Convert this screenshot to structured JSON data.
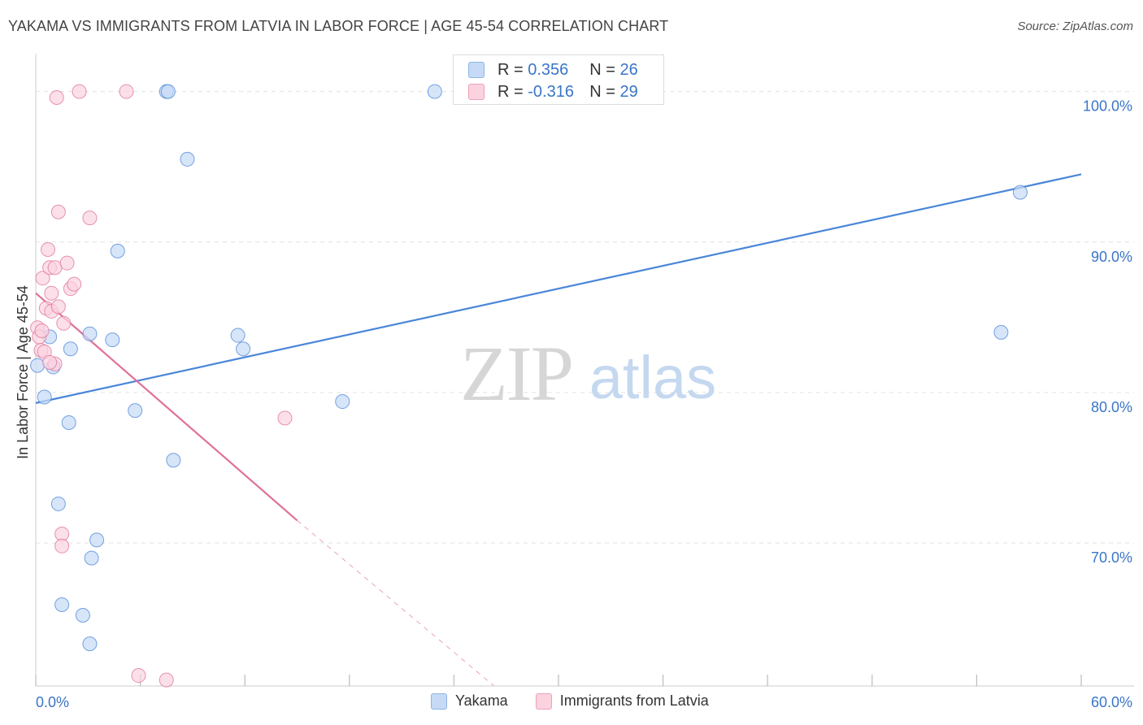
{
  "title": "YAKAMA VS IMMIGRANTS FROM LATVIA IN LABOR FORCE | AGE 45-54 CORRELATION CHART",
  "source": "Source: ZipAtlas.com",
  "watermark": {
    "zip": "ZIP",
    "atlas": "atlas"
  },
  "stats": [
    {
      "r_label": "R = ",
      "r_value": "0.356",
      "n_label": "N = ",
      "n_value": "26",
      "color": "#c6daf6"
    },
    {
      "r_label": "R = ",
      "r_value": "-0.316",
      "n_label": "N = ",
      "n_value": "29",
      "color": "#fbd3df"
    }
  ],
  "chart_data": {
    "type": "scatter",
    "title": "YAKAMA VS IMMIGRANTS FROM LATVIA IN LABOR FORCE | AGE 45-54 CORRELATION CHART",
    "xlabel": "",
    "ylabel": "In Labor Force | Age 45-54",
    "xlim": [
      0,
      60
    ],
    "ylim": [
      60.5,
      102.3
    ],
    "x_tick_labels": [
      "0.0%",
      "60.0%"
    ],
    "y_ticks": [
      70,
      80,
      90,
      100
    ],
    "y_tick_labels": [
      "70.0%",
      "80.0%",
      "90.0%",
      "100.0%"
    ],
    "legend": [
      "Yakama",
      "Immigrants from Latvia"
    ],
    "series": [
      {
        "name": "Yakama",
        "color": "#4a86d8",
        "fill": "#c6daf6",
        "points": [
          [
            0.1,
            81.8
          ],
          [
            0.5,
            79.7
          ],
          [
            0.8,
            83.7
          ],
          [
            1.0,
            81.7
          ],
          [
            1.3,
            72.6
          ],
          [
            1.5,
            65.9
          ],
          [
            1.9,
            78.0
          ],
          [
            2.0,
            82.9
          ],
          [
            2.7,
            65.2
          ],
          [
            3.1,
            63.3
          ],
          [
            3.1,
            83.9
          ],
          [
            3.2,
            69.0
          ],
          [
            3.5,
            70.2
          ],
          [
            4.4,
            83.5
          ],
          [
            4.7,
            89.4
          ],
          [
            5.7,
            78.8
          ],
          [
            7.5,
            100.0
          ],
          [
            7.6,
            100.0
          ],
          [
            7.9,
            75.5
          ],
          [
            8.7,
            95.5
          ],
          [
            11.6,
            83.8
          ],
          [
            11.9,
            82.9
          ],
          [
            17.6,
            79.4
          ],
          [
            22.9,
            100.0
          ],
          [
            55.4,
            84.0
          ],
          [
            56.5,
            93.3
          ]
        ],
        "trend": {
          "x": [
            0,
            60
          ],
          "y": [
            79.3,
            94.5
          ]
        }
      },
      {
        "name": "Immigrants from Latvia",
        "color": "#e0709a",
        "fill": "#fbd3df",
        "points": [
          [
            0.1,
            84.3
          ],
          [
            0.2,
            83.7
          ],
          [
            0.3,
            82.8
          ],
          [
            0.4,
            87.6
          ],
          [
            0.5,
            82.7
          ],
          [
            0.6,
            85.6
          ],
          [
            0.7,
            89.5
          ],
          [
            0.8,
            88.3
          ],
          [
            0.9,
            86.6
          ],
          [
            0.9,
            85.4
          ],
          [
            1.1,
            81.9
          ],
          [
            1.1,
            88.3
          ],
          [
            1.3,
            85.7
          ],
          [
            1.2,
            99.6
          ],
          [
            1.3,
            92.0
          ],
          [
            1.5,
            70.6
          ],
          [
            1.5,
            69.8
          ],
          [
            1.6,
            84.6
          ],
          [
            1.8,
            88.6
          ],
          [
            2.0,
            86.9
          ],
          [
            2.2,
            87.2
          ],
          [
            2.5,
            100.0
          ],
          [
            3.1,
            91.6
          ],
          [
            5.2,
            100.0
          ],
          [
            5.9,
            61.2
          ],
          [
            7.5,
            60.9
          ],
          [
            14.3,
            78.3
          ],
          [
            0.35,
            84.1
          ],
          [
            0.8,
            82.0
          ]
        ],
        "trend": {
          "x": [
            0,
            15.0
          ],
          "y": [
            86.6,
            71.5
          ]
        },
        "trend_dashed": {
          "x": [
            15.0,
            26.3
          ],
          "y": [
            71.5,
            60.5
          ]
        }
      }
    ]
  }
}
